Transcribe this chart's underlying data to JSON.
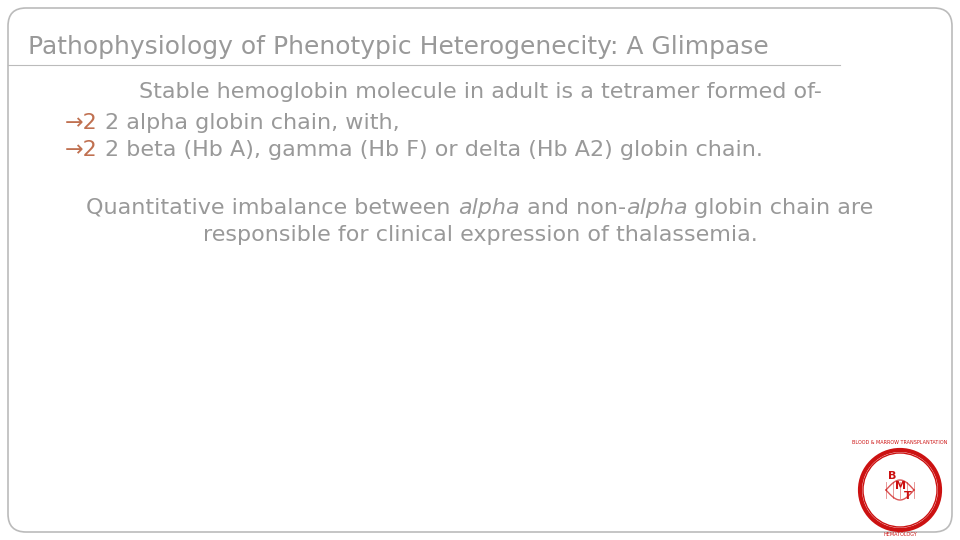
{
  "title": "Pathophysiology of Phenotypic Heterogenecity: A Glimpase",
  "title_color": "#999999",
  "title_fontsize": 18,
  "background_color": "#ffffff",
  "slide_border_color": "#bbbbbb",
  "line1": "Stable hemoglobin molecule in adult is a tetramer formed of-",
  "bullet_symbol": "→2",
  "bullet1_text": "2 alpha globin chain, with,",
  "bullet2_text": "2 beta (Hb A), gamma (Hb F) or delta (Hb A2) globin chain.",
  "para_line1_parts": [
    [
      "Quantitative imbalance between ",
      false
    ],
    [
      "alpha",
      true
    ],
    [
      " and non-",
      false
    ],
    [
      "alpha",
      true
    ],
    [
      " globin chain are",
      false
    ]
  ],
  "para_line2": "responsible for clinical expression of thalassemia.",
  "text_color": "#999999",
  "bullet_symbol_color": "#c07050",
  "body_fontsize": 16,
  "font_family": "Georgia"
}
